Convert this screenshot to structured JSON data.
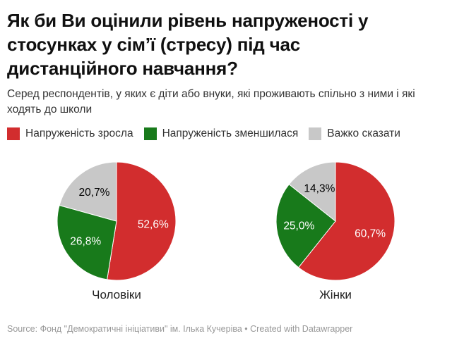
{
  "header": {
    "title": "Як би Ви оцінили рівень напруженості у стосунках у сім’ї (стресу) під час дистанційного навчання?",
    "subtitle": "Серед респондентів, у яких є діти або внуки, які проживають спільно з ними і які ходять до школи"
  },
  "legend": {
    "items": [
      {
        "label": "Напруженість зросла",
        "color": "#d22d2e"
      },
      {
        "label": "Напруженість зменшилася",
        "color": "#187a1b"
      },
      {
        "label": "Важко сказати",
        "color": "#c8c8c8"
      }
    ]
  },
  "chart_data": {
    "type": "pie",
    "title": "Як би Ви оцінили рівень напруженості у стосунках у сім’ї (стресу) під час дистанційного навчання?",
    "subtitle": "Серед респондентів, у яких є діти або внуки, які проживають спільно з ними і які ходять до школи",
    "legend_position": "top",
    "start_angle_deg": -90,
    "direction": "clockwise",
    "series_labels": [
      "Напруженість зросла",
      "Напруженість зменшилася",
      "Важко сказати"
    ],
    "colors": [
      "#d22d2e",
      "#187a1b",
      "#c8c8c8"
    ],
    "slice_label_colors": [
      "#ffffff",
      "#ffffff",
      "#000000"
    ],
    "charts": [
      {
        "category": "Чоловіки",
        "values": [
          52.6,
          26.8,
          20.7
        ],
        "value_labels": [
          "52,6%",
          "26,8%",
          "20,7%"
        ]
      },
      {
        "category": "Жінки",
        "values": [
          60.7,
          25.0,
          14.3
        ],
        "value_labels": [
          "60,7%",
          "25,0%",
          "14,3%"
        ]
      }
    ]
  },
  "footer": {
    "source_prefix": "Source: ",
    "source_name": "Фонд \"Демократичні ініціативи\" ім. Ілька Кучеріва",
    "separator": " • ",
    "attribution": "Created with Datawrapper"
  }
}
